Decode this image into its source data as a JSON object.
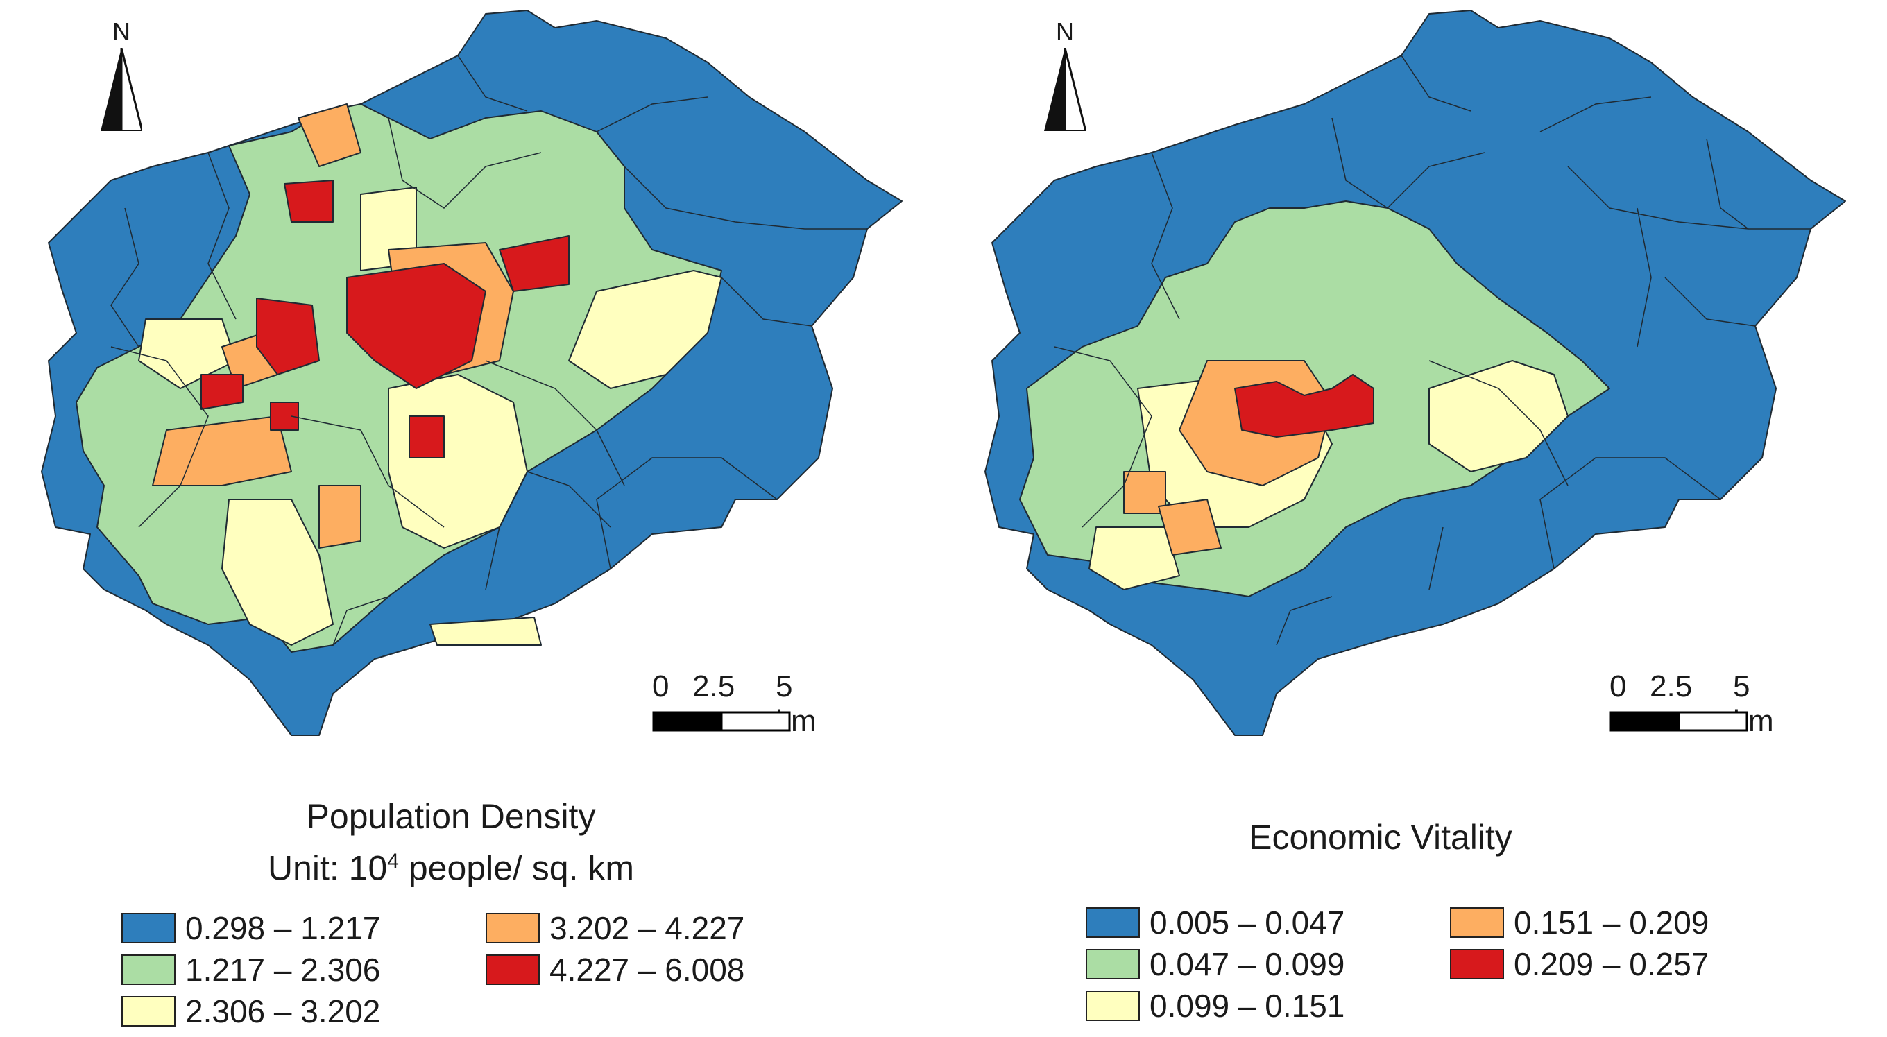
{
  "colors": {
    "class1": "#2E7EBC",
    "class2": "#ABDDA4",
    "class3": "#FFFFBF",
    "class4": "#FDAE61",
    "class5": "#D7191C",
    "outline": "#1f2a33"
  },
  "maps": [
    {
      "north_label": "N",
      "scale_ticks": [
        "0",
        "2.5",
        "5 km"
      ],
      "legend_title": "Population Density",
      "legend_subtitle_prefix": "Unit: 10",
      "legend_subtitle_sup": "4",
      "legend_subtitle_suffix": " people/ sq. km",
      "legend": [
        {
          "label": "0.298 – 1.217",
          "class": "class1"
        },
        {
          "label": "1.217 – 2.306",
          "class": "class2"
        },
        {
          "label": "2.306 – 3.202",
          "class": "class3"
        },
        {
          "label": "3.202 – 4.227",
          "class": "class4"
        },
        {
          "label": "4.227 – 6.008",
          "class": "class5"
        }
      ]
    },
    {
      "north_label": "N",
      "scale_ticks": [
        "0",
        "2.5",
        "5 km"
      ],
      "legend_title": "Economic Vitality",
      "legend": [
        {
          "label": "0.005 – 0.047",
          "class": "class1"
        },
        {
          "label": "0.047 – 0.099",
          "class": "class2"
        },
        {
          "label": "0.099 – 0.151",
          "class": "class3"
        },
        {
          "label": "0.151 – 0.209",
          "class": "class4"
        },
        {
          "label": "0.209 – 0.257",
          "class": "class5"
        }
      ]
    }
  ]
}
